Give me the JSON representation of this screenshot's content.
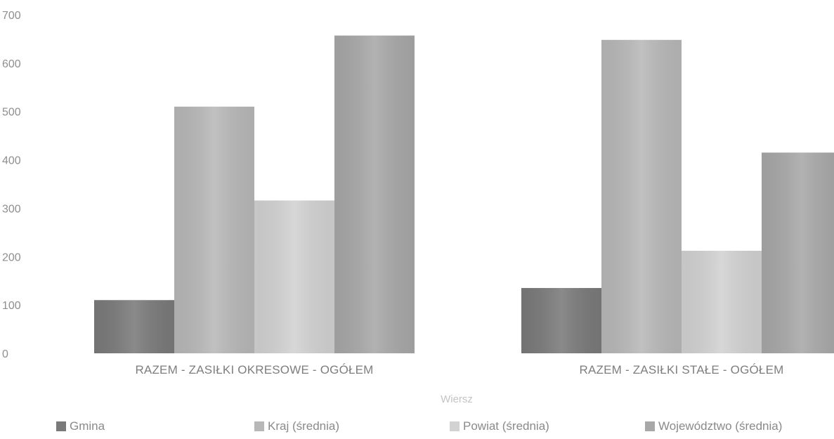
{
  "chart_data": {
    "type": "bar",
    "categories": [
      "RAZEM - ZASIŁKI OKRESOWE - OGÓŁEM",
      "RAZEM - ZASIŁKI STAŁE - OGÓŁEM"
    ],
    "series": [
      {
        "name": "Gmina",
        "values": [
          110,
          135
        ],
        "color": "#7a7a7a"
      },
      {
        "name": "Kraj (średnia)",
        "values": [
          510,
          648
        ],
        "color": "#b8b8b8"
      },
      {
        "name": "Powiat (średnia)",
        "values": [
          316,
          212
        ],
        "color": "#d2d2d2"
      },
      {
        "name": "Województwo (średnia)",
        "values": [
          657,
          415
        ],
        "color": "#a8a8a8"
      }
    ],
    "xlabel": "Wiersz",
    "ylabel": "",
    "ylim": [
      0,
      700
    ],
    "yticks": [
      0,
      100,
      200,
      300,
      400,
      500,
      600,
      700
    ],
    "grid": false,
    "legend_position": "bottom"
  }
}
